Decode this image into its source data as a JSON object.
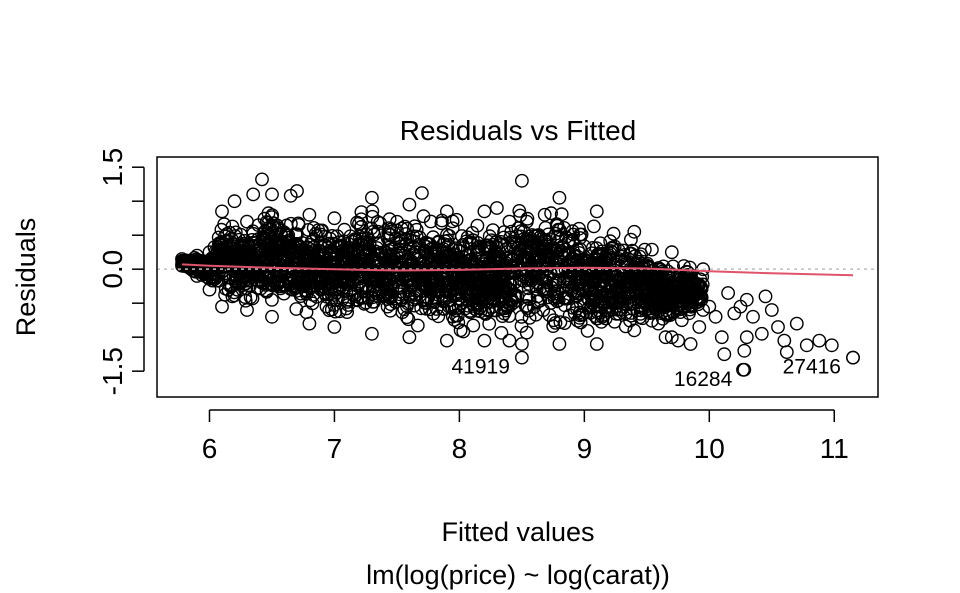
{
  "chart_data": {
    "type": "scatter",
    "title": "Residuals vs Fitted",
    "xlabel": "Fitted values",
    "subtitle": "lm(log(price) ~ log(carat))",
    "ylabel": "Residuals",
    "xlim": [
      5.58,
      11.35
    ],
    "ylim": [
      -1.88,
      1.65
    ],
    "x_ticks": [
      6,
      7,
      8,
      9,
      10,
      11
    ],
    "y_ticks": [
      -1.5,
      0.0,
      1.5
    ],
    "y_tick_labels": [
      "-1.5",
      "0.0",
      "1.5"
    ],
    "y_minor_ticks": [
      -1.0,
      -0.5,
      0.5,
      1.0
    ],
    "zero_line": 0,
    "colors": {
      "points": "#000000",
      "smoother": "#DF536B",
      "zero_line": "#BEBEBE"
    },
    "series": [
      {
        "type": "point_band",
        "bands": [
          {
            "x": 5.78,
            "ylow": 0.05,
            "yhigh": 0.15
          },
          {
            "x": 5.9,
            "ylow": -0.1,
            "yhigh": 0.2
          },
          {
            "x": 6.0,
            "ylow": -0.3,
            "yhigh": 0.25
          },
          {
            "x": 6.1,
            "ylow": -0.55,
            "yhigh": 0.85
          },
          {
            "x": 6.3,
            "ylow": -0.6,
            "yhigh": 0.7
          },
          {
            "x": 6.5,
            "ylow": -0.7,
            "yhigh": 1.1
          },
          {
            "x": 6.8,
            "ylow": -0.8,
            "yhigh": 0.8
          },
          {
            "x": 7.0,
            "ylow": -0.85,
            "yhigh": 0.75
          },
          {
            "x": 7.3,
            "ylow": -0.95,
            "yhigh": 1.05
          },
          {
            "x": 7.6,
            "ylow": -1.0,
            "yhigh": 0.95
          },
          {
            "x": 7.9,
            "ylow": -1.05,
            "yhigh": 0.85
          },
          {
            "x": 8.2,
            "ylow": -1.05,
            "yhigh": 0.85
          },
          {
            "x": 8.4,
            "ylow": -1.05,
            "yhigh": 0.7
          },
          {
            "x": 8.5,
            "ylow": -1.1,
            "yhigh": 1.3
          },
          {
            "x": 8.8,
            "ylow": -1.1,
            "yhigh": 1.05
          },
          {
            "x": 9.1,
            "ylow": -1.1,
            "yhigh": 0.85
          },
          {
            "x": 9.4,
            "ylow": -0.9,
            "yhigh": 0.55
          },
          {
            "x": 9.7,
            "ylow": -1.0,
            "yhigh": 0.25
          },
          {
            "x": 9.95,
            "ylow": -0.6,
            "yhigh": 0.0
          }
        ],
        "scattered_points": [
          [
            6.2,
            1.0
          ],
          [
            6.42,
            1.32
          ],
          [
            6.35,
            1.1
          ],
          [
            6.65,
            1.08
          ],
          [
            6.7,
            1.15
          ],
          [
            7.7,
            1.12
          ],
          [
            8.3,
            0.9
          ],
          [
            9.65,
            -1.0
          ],
          [
            9.75,
            -1.05
          ],
          [
            9.85,
            -1.1
          ],
          [
            9.92,
            -0.85
          ],
          [
            10.0,
            -0.55
          ],
          [
            10.05,
            -0.7
          ],
          [
            10.1,
            -1.0
          ],
          [
            10.12,
            -1.25
          ],
          [
            10.2,
            -0.65
          ],
          [
            10.25,
            -0.55
          ],
          [
            10.28,
            -1.2
          ],
          [
            10.3,
            -1.0
          ],
          [
            10.3,
            -0.45
          ],
          [
            10.35,
            -0.7
          ],
          [
            10.42,
            -0.95
          ],
          [
            10.45,
            -0.4
          ],
          [
            10.55,
            -0.85
          ],
          [
            10.6,
            -1.05
          ],
          [
            10.62,
            -1.22
          ],
          [
            10.7,
            -0.8
          ],
          [
            10.78,
            -1.12
          ],
          [
            10.88,
            -1.05
          ],
          [
            10.98,
            -1.12
          ],
          [
            11.15,
            -1.3
          ],
          [
            10.27,
            -1.48
          ],
          [
            10.5,
            -0.6
          ],
          [
            10.15,
            -0.35
          ],
          [
            9.9,
            -0.45
          ],
          [
            9.78,
            -0.75
          ]
        ],
        "outliers": [
          {
            "label": "41919",
            "x": 8.5,
            "y": -1.3
          },
          {
            "label": "16284",
            "x": 10.28,
            "y": -1.48
          },
          {
            "label": "27416",
            "x": 11.15,
            "y": -1.3
          }
        ]
      },
      {
        "type": "line",
        "x": [
          5.78,
          6.0,
          6.5,
          7.0,
          7.5,
          8.0,
          8.5,
          9.0,
          9.5,
          10.0,
          10.5,
          11.15
        ],
        "y": [
          0.07,
          0.05,
          0.02,
          0.0,
          -0.02,
          -0.01,
          0.01,
          0.02,
          0.01,
          -0.03,
          -0.06,
          -0.09
        ]
      }
    ]
  }
}
